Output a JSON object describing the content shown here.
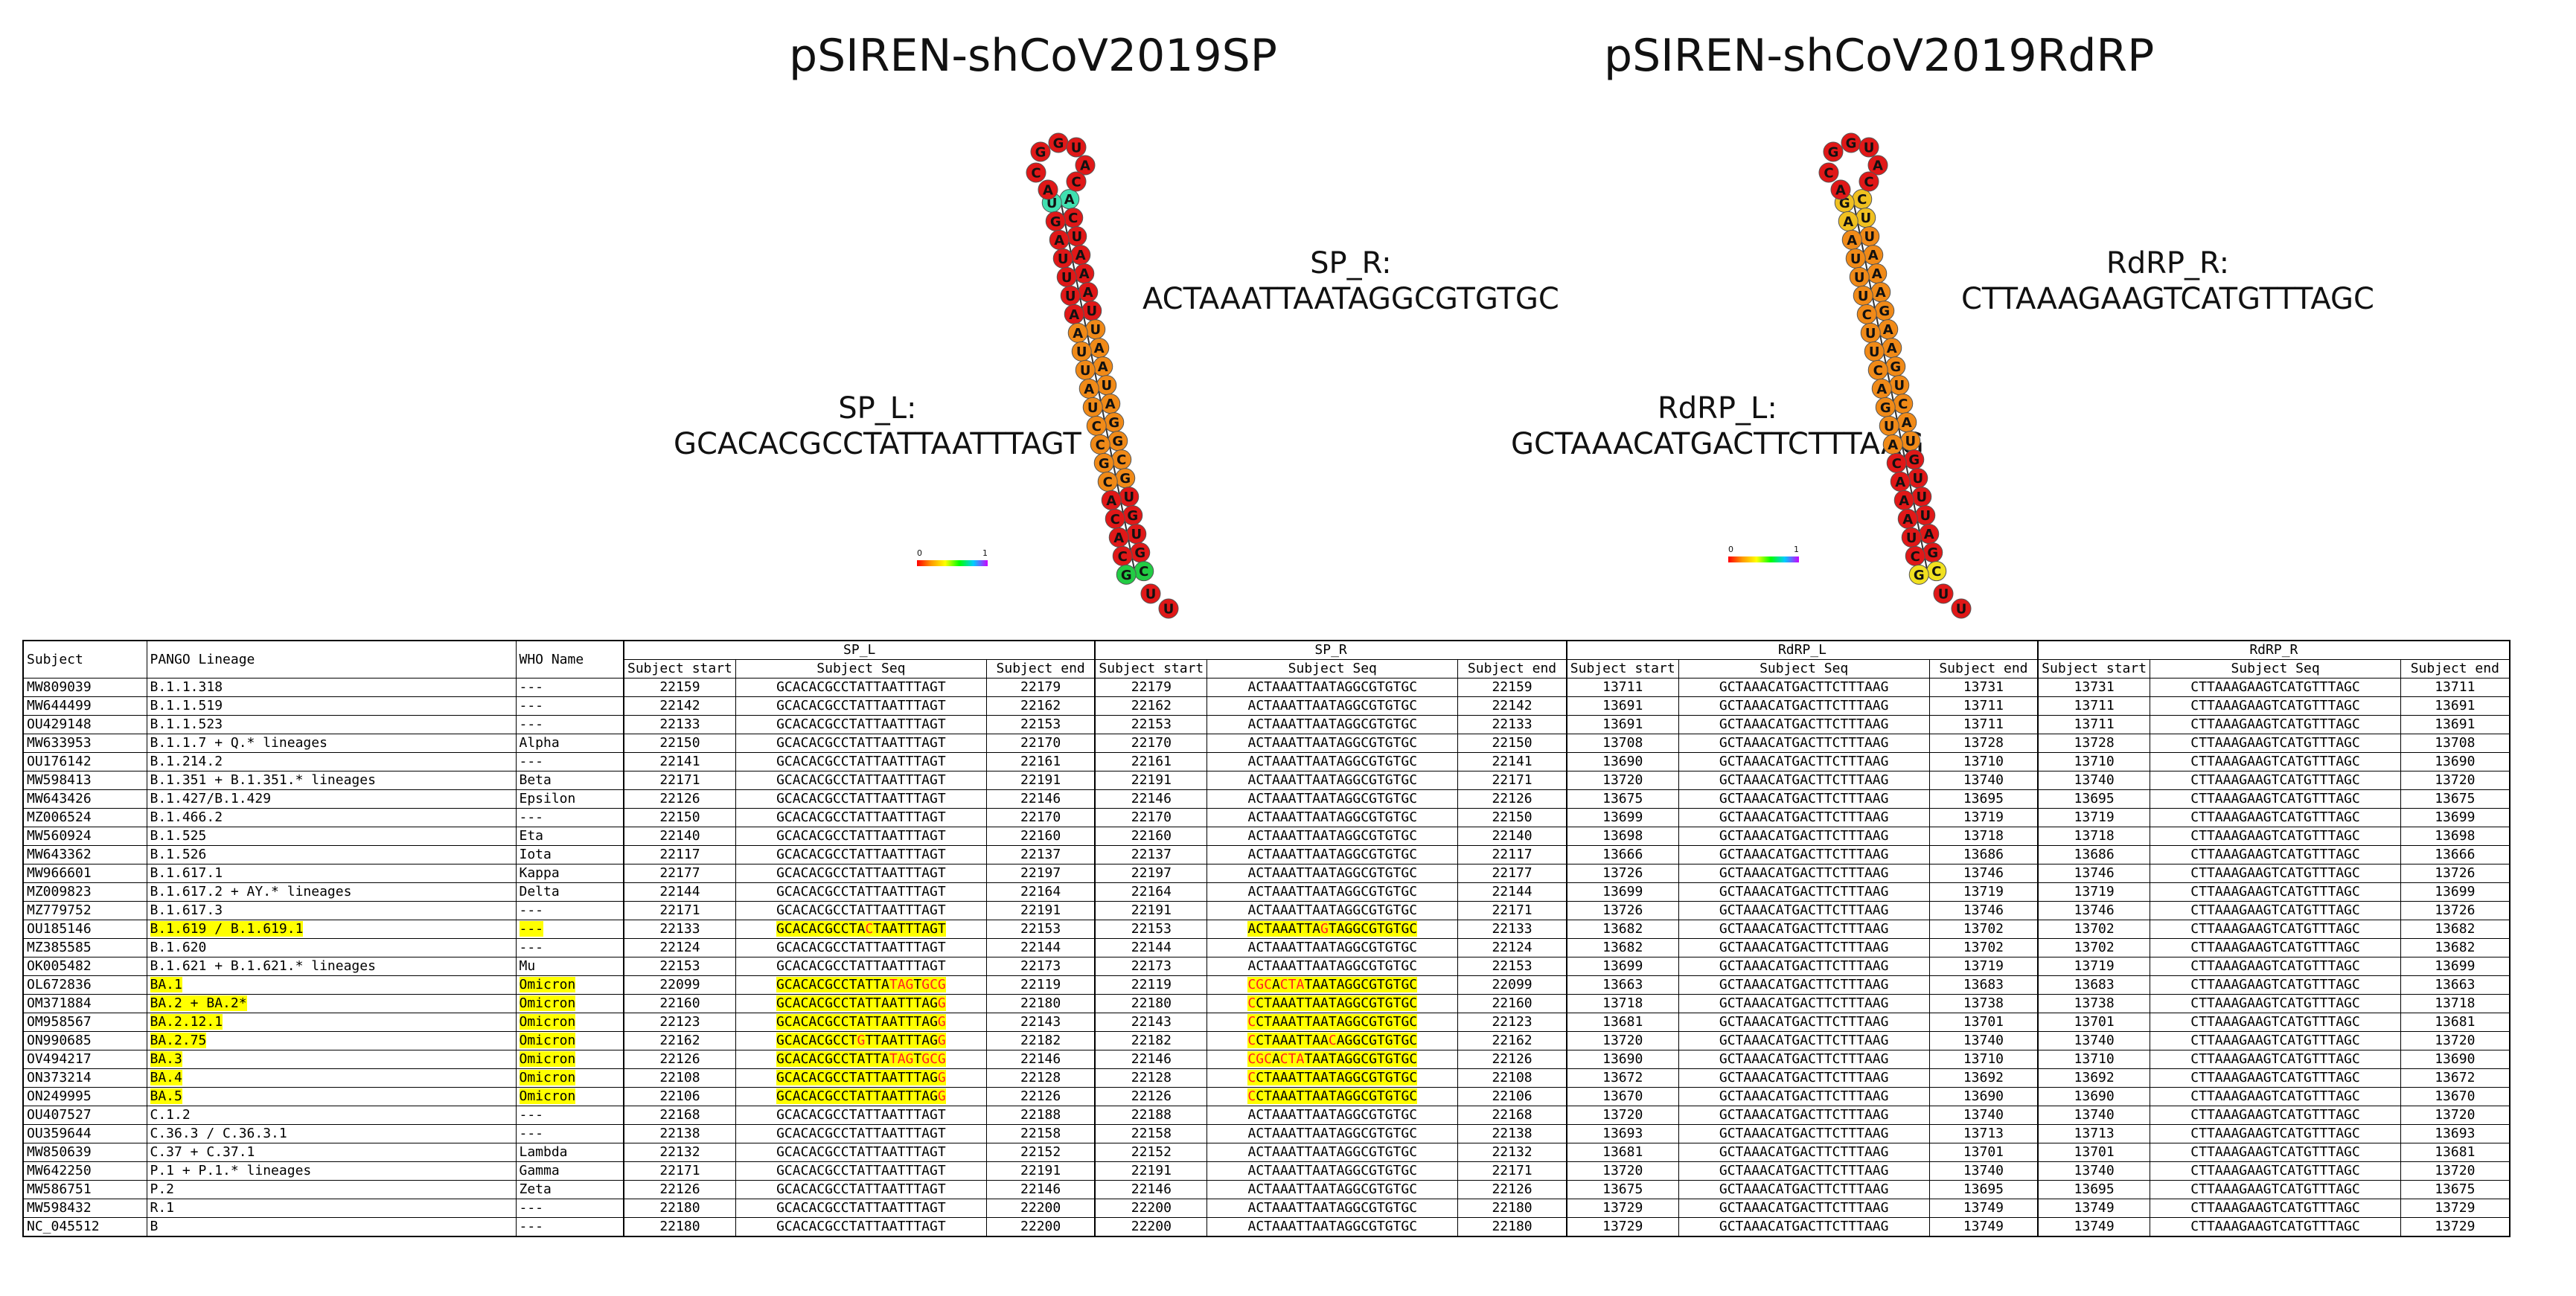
{
  "left_panel": {
    "title": "pSIREN-shCoV2019SP",
    "forward_label": "SP_L:",
    "forward_seq": "GCACACGCCTATTAATTTAGT",
    "reverse_label": "SP_R:",
    "reverse_seq": "ACTAAATTAATAGGCGTGTGC",
    "scale_min": "0",
    "scale_max": "1",
    "hairpin": {
      "left_stem": [
        "G",
        "C",
        "A",
        "C",
        "A",
        "C",
        "G",
        "C",
        "C",
        "U",
        "A",
        "U",
        "U",
        "A",
        "A",
        "U",
        "U",
        "U",
        "A",
        "G",
        "U"
      ],
      "right_stem": [
        "A",
        "C",
        "U",
        "A",
        "A",
        "A",
        "U",
        "U",
        "A",
        "A",
        "U",
        "A",
        "G",
        "G",
        "C",
        "G",
        "U",
        "G",
        "U",
        "G",
        "C"
      ],
      "loop": [
        "A",
        "C",
        "G",
        "G",
        "U",
        "A",
        "C"
      ],
      "tail": [
        "U",
        "U"
      ]
    }
  },
  "right_panel": {
    "title": "pSIREN-shCoV2019RdRP",
    "forward_label": "RdRP_L:",
    "forward_seq": "GCTAAACATGACTTCTTTAAG",
    "reverse_label": "RdRP_R:",
    "reverse_seq": "CTTAAAGAAGTCATGTTTAGC",
    "scale_min": "0",
    "scale_max": "1",
    "hairpin": {
      "left_stem": [
        "G",
        "C",
        "U",
        "A",
        "A",
        "A",
        "C",
        "A",
        "U",
        "G",
        "A",
        "C",
        "U",
        "U",
        "C",
        "U",
        "U",
        "U",
        "A",
        "A",
        "G"
      ],
      "right_stem": [
        "C",
        "U",
        "U",
        "A",
        "A",
        "A",
        "G",
        "A",
        "A",
        "G",
        "U",
        "C",
        "A",
        "U",
        "G",
        "U",
        "U",
        "U",
        "A",
        "G",
        "C"
      ],
      "loop": [
        "A",
        "C",
        "G",
        "G",
        "U",
        "A",
        "C"
      ],
      "tail": [
        "U",
        "U"
      ]
    }
  },
  "table": {
    "headers": {
      "subject": "Subject",
      "pango": "PANGO Lineage",
      "who": "WHO Name",
      "groups": [
        "SP_L",
        "SP_R",
        "RdRP_L",
        "RdRP_R"
      ],
      "sub": [
        "Subject start",
        "Subject Seq",
        "Subject end"
      ]
    },
    "rows": [
      {
        "subject": "MW809039",
        "pango": "B.1.1.318",
        "who": "---",
        "hl": false,
        "sp_l": [
          "22159",
          "GCACACGCCTATTAATTTAGT",
          "22179"
        ],
        "sp_r": [
          "22179",
          "ACTAAATTAATAGGCGTGTGC",
          "22159"
        ],
        "rdrp_l": [
          "13711",
          "GCTAAACATGACTTCTTTAAG",
          "13731"
        ],
        "rdrp_r": [
          "13731",
          "CTTAAAGAAGTCATGTTTAGC",
          "13711"
        ]
      },
      {
        "subject": "MW644499",
        "pango": "B.1.1.519",
        "who": "---",
        "hl": false,
        "sp_l": [
          "22142",
          "GCACACGCCTATTAATTTAGT",
          "22162"
        ],
        "sp_r": [
          "22162",
          "ACTAAATTAATAGGCGTGTGC",
          "22142"
        ],
        "rdrp_l": [
          "13691",
          "GCTAAACATGACTTCTTTAAG",
          "13711"
        ],
        "rdrp_r": [
          "13711",
          "CTTAAAGAAGTCATGTTTAGC",
          "13691"
        ]
      },
      {
        "subject": "OU429148",
        "pango": "B.1.1.523",
        "who": "---",
        "hl": false,
        "sp_l": [
          "22133",
          "GCACACGCCTATTAATTTAGT",
          "22153"
        ],
        "sp_r": [
          "22153",
          "ACTAAATTAATAGGCGTGTGC",
          "22133"
        ],
        "rdrp_l": [
          "13691",
          "GCTAAACATGACTTCTTTAAG",
          "13711"
        ],
        "rdrp_r": [
          "13711",
          "CTTAAAGAAGTCATGTTTAGC",
          "13691"
        ]
      },
      {
        "subject": "MW633953",
        "pango": "B.1.1.7 + Q.* lineages",
        "who": "Alpha",
        "hl": false,
        "sp_l": [
          "22150",
          "GCACACGCCTATTAATTTAGT",
          "22170"
        ],
        "sp_r": [
          "22170",
          "ACTAAATTAATAGGCGTGTGC",
          "22150"
        ],
        "rdrp_l": [
          "13708",
          "GCTAAACATGACTTCTTTAAG",
          "13728"
        ],
        "rdrp_r": [
          "13728",
          "CTTAAAGAAGTCATGTTTAGC",
          "13708"
        ]
      },
      {
        "subject": "OU176142",
        "pango": "B.1.214.2",
        "who": "---",
        "hl": false,
        "sp_l": [
          "22141",
          "GCACACGCCTATTAATTTAGT",
          "22161"
        ],
        "sp_r": [
          "22161",
          "ACTAAATTAATAGGCGTGTGC",
          "22141"
        ],
        "rdrp_l": [
          "13690",
          "GCTAAACATGACTTCTTTAAG",
          "13710"
        ],
        "rdrp_r": [
          "13710",
          "CTTAAAGAAGTCATGTTTAGC",
          "13690"
        ]
      },
      {
        "subject": "MW598413",
        "pango": "B.1.351 + B.1.351.* lineages",
        "who": "Beta",
        "hl": false,
        "sp_l": [
          "22171",
          "GCACACGCCTATTAATTTAGT",
          "22191"
        ],
        "sp_r": [
          "22191",
          "ACTAAATTAATAGGCGTGTGC",
          "22171"
        ],
        "rdrp_l": [
          "13720",
          "GCTAAACATGACTTCTTTAAG",
          "13740"
        ],
        "rdrp_r": [
          "13740",
          "CTTAAAGAAGTCATGTTTAGC",
          "13720"
        ]
      },
      {
        "subject": "MW643426",
        "pango": "B.1.427/B.1.429",
        "who": "Epsilon",
        "hl": false,
        "sp_l": [
          "22126",
          "GCACACGCCTATTAATTTAGT",
          "22146"
        ],
        "sp_r": [
          "22146",
          "ACTAAATTAATAGGCGTGTGC",
          "22126"
        ],
        "rdrp_l": [
          "13675",
          "GCTAAACATGACTTCTTTAAG",
          "13695"
        ],
        "rdrp_r": [
          "13695",
          "CTTAAAGAAGTCATGTTTAGC",
          "13675"
        ]
      },
      {
        "subject": "MZ006524",
        "pango": "B.1.466.2",
        "who": "---",
        "hl": false,
        "sp_l": [
          "22150",
          "GCACACGCCTATTAATTTAGT",
          "22170"
        ],
        "sp_r": [
          "22170",
          "ACTAAATTAATAGGCGTGTGC",
          "22150"
        ],
        "rdrp_l": [
          "13699",
          "GCTAAACATGACTTCTTTAAG",
          "13719"
        ],
        "rdrp_r": [
          "13719",
          "CTTAAAGAAGTCATGTTTAGC",
          "13699"
        ]
      },
      {
        "subject": "MW560924",
        "pango": "B.1.525",
        "who": "Eta",
        "hl": false,
        "sp_l": [
          "22140",
          "GCACACGCCTATTAATTTAGT",
          "22160"
        ],
        "sp_r": [
          "22160",
          "ACTAAATTAATAGGCGTGTGC",
          "22140"
        ],
        "rdrp_l": [
          "13698",
          "GCTAAACATGACTTCTTTAAG",
          "13718"
        ],
        "rdrp_r": [
          "13718",
          "CTTAAAGAAGTCATGTTTAGC",
          "13698"
        ]
      },
      {
        "subject": "MW643362",
        "pango": "B.1.526",
        "who": "Iota",
        "hl": false,
        "sp_l": [
          "22117",
          "GCACACGCCTATTAATTTAGT",
          "22137"
        ],
        "sp_r": [
          "22137",
          "ACTAAATTAATAGGCGTGTGC",
          "22117"
        ],
        "rdrp_l": [
          "13666",
          "GCTAAACATGACTTCTTTAAG",
          "13686"
        ],
        "rdrp_r": [
          "13686",
          "CTTAAAGAAGTCATGTTTAGC",
          "13666"
        ]
      },
      {
        "subject": "MW966601",
        "pango": "B.1.617.1",
        "who": "Kappa",
        "hl": false,
        "sp_l": [
          "22177",
          "GCACACGCCTATTAATTTAGT",
          "22197"
        ],
        "sp_r": [
          "22197",
          "ACTAAATTAATAGGCGTGTGC",
          "22177"
        ],
        "rdrp_l": [
          "13726",
          "GCTAAACATGACTTCTTTAAG",
          "13746"
        ],
        "rdrp_r": [
          "13746",
          "CTTAAAGAAGTCATGTTTAGC",
          "13726"
        ]
      },
      {
        "subject": "MZ009823",
        "pango": "B.1.617.2 + AY.* lineages",
        "who": "Delta",
        "hl": false,
        "sp_l": [
          "22144",
          "GCACACGCCTATTAATTTAGT",
          "22164"
        ],
        "sp_r": [
          "22164",
          "ACTAAATTAATAGGCGTGTGC",
          "22144"
        ],
        "rdrp_l": [
          "13699",
          "GCTAAACATGACTTCTTTAAG",
          "13719"
        ],
        "rdrp_r": [
          "13719",
          "CTTAAAGAAGTCATGTTTAGC",
          "13699"
        ]
      },
      {
        "subject": "MZ779752",
        "pango": "B.1.617.3",
        "who": "---",
        "hl": false,
        "sp_l": [
          "22171",
          "GCACACGCCTATTAATTTAGT",
          "22191"
        ],
        "sp_r": [
          "22191",
          "ACTAAATTAATAGGCGTGTGC",
          "22171"
        ],
        "rdrp_l": [
          "13726",
          "GCTAAACATGACTTCTTTAAG",
          "13746"
        ],
        "rdrp_r": [
          "13746",
          "CTTAAAGAAGTCATGTTTAGC",
          "13726"
        ]
      },
      {
        "subject": "OU185146",
        "pango": "B.1.619 / B.1.619.1",
        "who": "---",
        "hl": true,
        "sp_l": [
          "22133",
          "GCACACGCCTACTAATTTAGT",
          "22153"
        ],
        "sp_r": [
          "22153",
          "ACTAAATTAGTAGGCGTGTGC",
          "22133"
        ],
        "rdrp_l": [
          "13682",
          "GCTAAACATGACTTCTTTAAG",
          "13702"
        ],
        "rdrp_r": [
          "13702",
          "CTTAAAGAAGTCATGTTTAGC",
          "13682"
        ]
      },
      {
        "subject": "MZ385585",
        "pango": "B.1.620",
        "who": "---",
        "hl": false,
        "sp_l": [
          "22124",
          "GCACACGCCTATTAATTTAGT",
          "22144"
        ],
        "sp_r": [
          "22144",
          "ACTAAATTAATAGGCGTGTGC",
          "22124"
        ],
        "rdrp_l": [
          "13682",
          "GCTAAACATGACTTCTTTAAG",
          "13702"
        ],
        "rdrp_r": [
          "13702",
          "CTTAAAGAAGTCATGTTTAGC",
          "13682"
        ]
      },
      {
        "subject": "OK005482",
        "pango": "B.1.621 + B.1.621.* lineages",
        "who": "Mu",
        "hl": false,
        "sp_l": [
          "22153",
          "GCACACGCCTATTAATTTAGT",
          "22173"
        ],
        "sp_r": [
          "22173",
          "ACTAAATTAATAGGCGTGTGC",
          "22153"
        ],
        "rdrp_l": [
          "13699",
          "GCTAAACATGACTTCTTTAAG",
          "13719"
        ],
        "rdrp_r": [
          "13719",
          "CTTAAAGAAGTCATGTTTAGC",
          "13699"
        ]
      },
      {
        "subject": "OL672836",
        "pango": "BA.1",
        "who": "Omicron",
        "hl": true,
        "sp_l": [
          "22099",
          "GCACACGCCTATTATAGTGCG",
          "22119"
        ],
        "sp_r": [
          "22119",
          "CGCACTATAATAGGCGTGTGC",
          "22099"
        ],
        "rdrp_l": [
          "13663",
          "GCTAAACATGACTTCTTTAAG",
          "13683"
        ],
        "rdrp_r": [
          "13683",
          "CTTAAAGAAGTCATGTTTAGC",
          "13663"
        ]
      },
      {
        "subject": "OM371884",
        "pango": "BA.2 + BA.2*",
        "who": "Omicron",
        "hl": true,
        "sp_l": [
          "22160",
          "GCACACGCCTATTAATTTAGG",
          "22180"
        ],
        "sp_r": [
          "22180",
          "CCTAAATTAATAGGCGTGTGC",
          "22160"
        ],
        "rdrp_l": [
          "13718",
          "GCTAAACATGACTTCTTTAAG",
          "13738"
        ],
        "rdrp_r": [
          "13738",
          "CTTAAAGAAGTCATGTTTAGC",
          "13718"
        ]
      },
      {
        "subject": "OM958567",
        "pango": "BA.2.12.1",
        "who": "Omicron",
        "hl": true,
        "sp_l": [
          "22123",
          "GCACACGCCTATTAATTTAGG",
          "22143"
        ],
        "sp_r": [
          "22143",
          "CCTAAATTAATAGGCGTGTGC",
          "22123"
        ],
        "rdrp_l": [
          "13681",
          "GCTAAACATGACTTCTTTAAG",
          "13701"
        ],
        "rdrp_r": [
          "13701",
          "CTTAAAGAAGTCATGTTTAGC",
          "13681"
        ]
      },
      {
        "subject": "ON990685",
        "pango": "BA.2.75",
        "who": "Omicron",
        "hl": true,
        "sp_l": [
          "22162",
          "GCACACGCCTGTTAATTTAGG",
          "22182"
        ],
        "sp_r": [
          "22182",
          "CCTAAATTAACAGGCGTGTGC",
          "22162"
        ],
        "rdrp_l": [
          "13720",
          "GCTAAACATGACTTCTTTAAG",
          "13740"
        ],
        "rdrp_r": [
          "13740",
          "CTTAAAGAAGTCATGTTTAGC",
          "13720"
        ]
      },
      {
        "subject": "OV494217",
        "pango": "BA.3",
        "who": "Omicron",
        "hl": true,
        "sp_l": [
          "22126",
          "GCACACGCCTATTATAGTGCG",
          "22146"
        ],
        "sp_r": [
          "22146",
          "CGCACTATAATAGGCGTGTGC",
          "22126"
        ],
        "rdrp_l": [
          "13690",
          "GCTAAACATGACTTCTTTAAG",
          "13710"
        ],
        "rdrp_r": [
          "13710",
          "CTTAAAGAAGTCATGTTTAGC",
          "13690"
        ]
      },
      {
        "subject": "ON373214",
        "pango": "BA.4",
        "who": "Omicron",
        "hl": true,
        "sp_l": [
          "22108",
          "GCACACGCCTATTAATTTAGG",
          "22128"
        ],
        "sp_r": [
          "22128",
          "CCTAAATTAATAGGCGTGTGC",
          "22108"
        ],
        "rdrp_l": [
          "13672",
          "GCTAAACATGACTTCTTTAAG",
          "13692"
        ],
        "rdrp_r": [
          "13692",
          "CTTAAAGAAGTCATGTTTAGC",
          "13672"
        ]
      },
      {
        "subject": "ON249995",
        "pango": "BA.5",
        "who": "Omicron",
        "hl": true,
        "sp_l": [
          "22106",
          "GCACACGCCTATTAATTTAGG",
          "22126"
        ],
        "sp_r": [
          "22126",
          "CCTAAATTAATAGGCGTGTGC",
          "22106"
        ],
        "rdrp_l": [
          "13670",
          "GCTAAACATGACTTCTTTAAG",
          "13690"
        ],
        "rdrp_r": [
          "13690",
          "CTTAAAGAAGTCATGTTTAGC",
          "13670"
        ]
      },
      {
        "subject": "OU407527",
        "pango": "C.1.2",
        "who": "---",
        "hl": false,
        "sp_l": [
          "22168",
          "GCACACGCCTATTAATTTAGT",
          "22188"
        ],
        "sp_r": [
          "22188",
          "ACTAAATTAATAGGCGTGTGC",
          "22168"
        ],
        "rdrp_l": [
          "13720",
          "GCTAAACATGACTTCTTTAAG",
          "13740"
        ],
        "rdrp_r": [
          "13740",
          "CTTAAAGAAGTCATGTTTAGC",
          "13720"
        ]
      },
      {
        "subject": "OU359644",
        "pango": "C.36.3 / C.36.3.1",
        "who": "---",
        "hl": false,
        "sp_l": [
          "22138",
          "GCACACGCCTATTAATTTAGT",
          "22158"
        ],
        "sp_r": [
          "22158",
          "ACTAAATTAATAGGCGTGTGC",
          "22138"
        ],
        "rdrp_l": [
          "13693",
          "GCTAAACATGACTTCTTTAAG",
          "13713"
        ],
        "rdrp_r": [
          "13713",
          "CTTAAAGAAGTCATGTTTAGC",
          "13693"
        ]
      },
      {
        "subject": "MW850639",
        "pango": "C.37 + C.37.1",
        "who": "Lambda",
        "hl": false,
        "sp_l": [
          "22132",
          "GCACACGCCTATTAATTTAGT",
          "22152"
        ],
        "sp_r": [
          "22152",
          "ACTAAATTAATAGGCGTGTGC",
          "22132"
        ],
        "rdrp_l": [
          "13681",
          "GCTAAACATGACTTCTTTAAG",
          "13701"
        ],
        "rdrp_r": [
          "13701",
          "CTTAAAGAAGTCATGTTTAGC",
          "13681"
        ]
      },
      {
        "subject": "MW642250",
        "pango": "P.1 + P.1.* lineages",
        "who": "Gamma",
        "hl": false,
        "sp_l": [
          "22171",
          "GCACACGCCTATTAATTTAGT",
          "22191"
        ],
        "sp_r": [
          "22191",
          "ACTAAATTAATAGGCGTGTGC",
          "22171"
        ],
        "rdrp_l": [
          "13720",
          "GCTAAACATGACTTCTTTAAG",
          "13740"
        ],
        "rdrp_r": [
          "13740",
          "CTTAAAGAAGTCATGTTTAGC",
          "13720"
        ]
      },
      {
        "subject": "MW586751",
        "pango": "P.2",
        "who": "Zeta",
        "hl": false,
        "sp_l": [
          "22126",
          "GCACACGCCTATTAATTTAGT",
          "22146"
        ],
        "sp_r": [
          "22146",
          "ACTAAATTAATAGGCGTGTGC",
          "22126"
        ],
        "rdrp_l": [
          "13675",
          "GCTAAACATGACTTCTTTAAG",
          "13695"
        ],
        "rdrp_r": [
          "13695",
          "CTTAAAGAAGTCATGTTTAGC",
          "13675"
        ]
      },
      {
        "subject": "MW598432",
        "pango": "R.1",
        "who": "---",
        "hl": false,
        "sp_l": [
          "22180",
          "GCACACGCCTATTAATTTAGT",
          "22200"
        ],
        "sp_r": [
          "22200",
          "ACTAAATTAATAGGCGTGTGC",
          "22180"
        ],
        "rdrp_l": [
          "13729",
          "GCTAAACATGACTTCTTTAAG",
          "13749"
        ],
        "rdrp_r": [
          "13749",
          "CTTAAAGAAGTCATGTTTAGC",
          "13729"
        ]
      },
      {
        "subject": "NC_045512",
        "pango": "B",
        "who": "---",
        "hl": false,
        "sp_l": [
          "22180",
          "GCACACGCCTATTAATTTAGT",
          "22200"
        ],
        "sp_r": [
          "22200",
          "ACTAAATTAATAGGCGTGTGC",
          "22180"
        ],
        "rdrp_l": [
          "13729",
          "GCTAAACATGACTTCTTTAAG",
          "13749"
        ],
        "rdrp_r": [
          "13749",
          "CTTAAAGAAGTCATGTTTAGC",
          "13729"
        ]
      }
    ]
  }
}
